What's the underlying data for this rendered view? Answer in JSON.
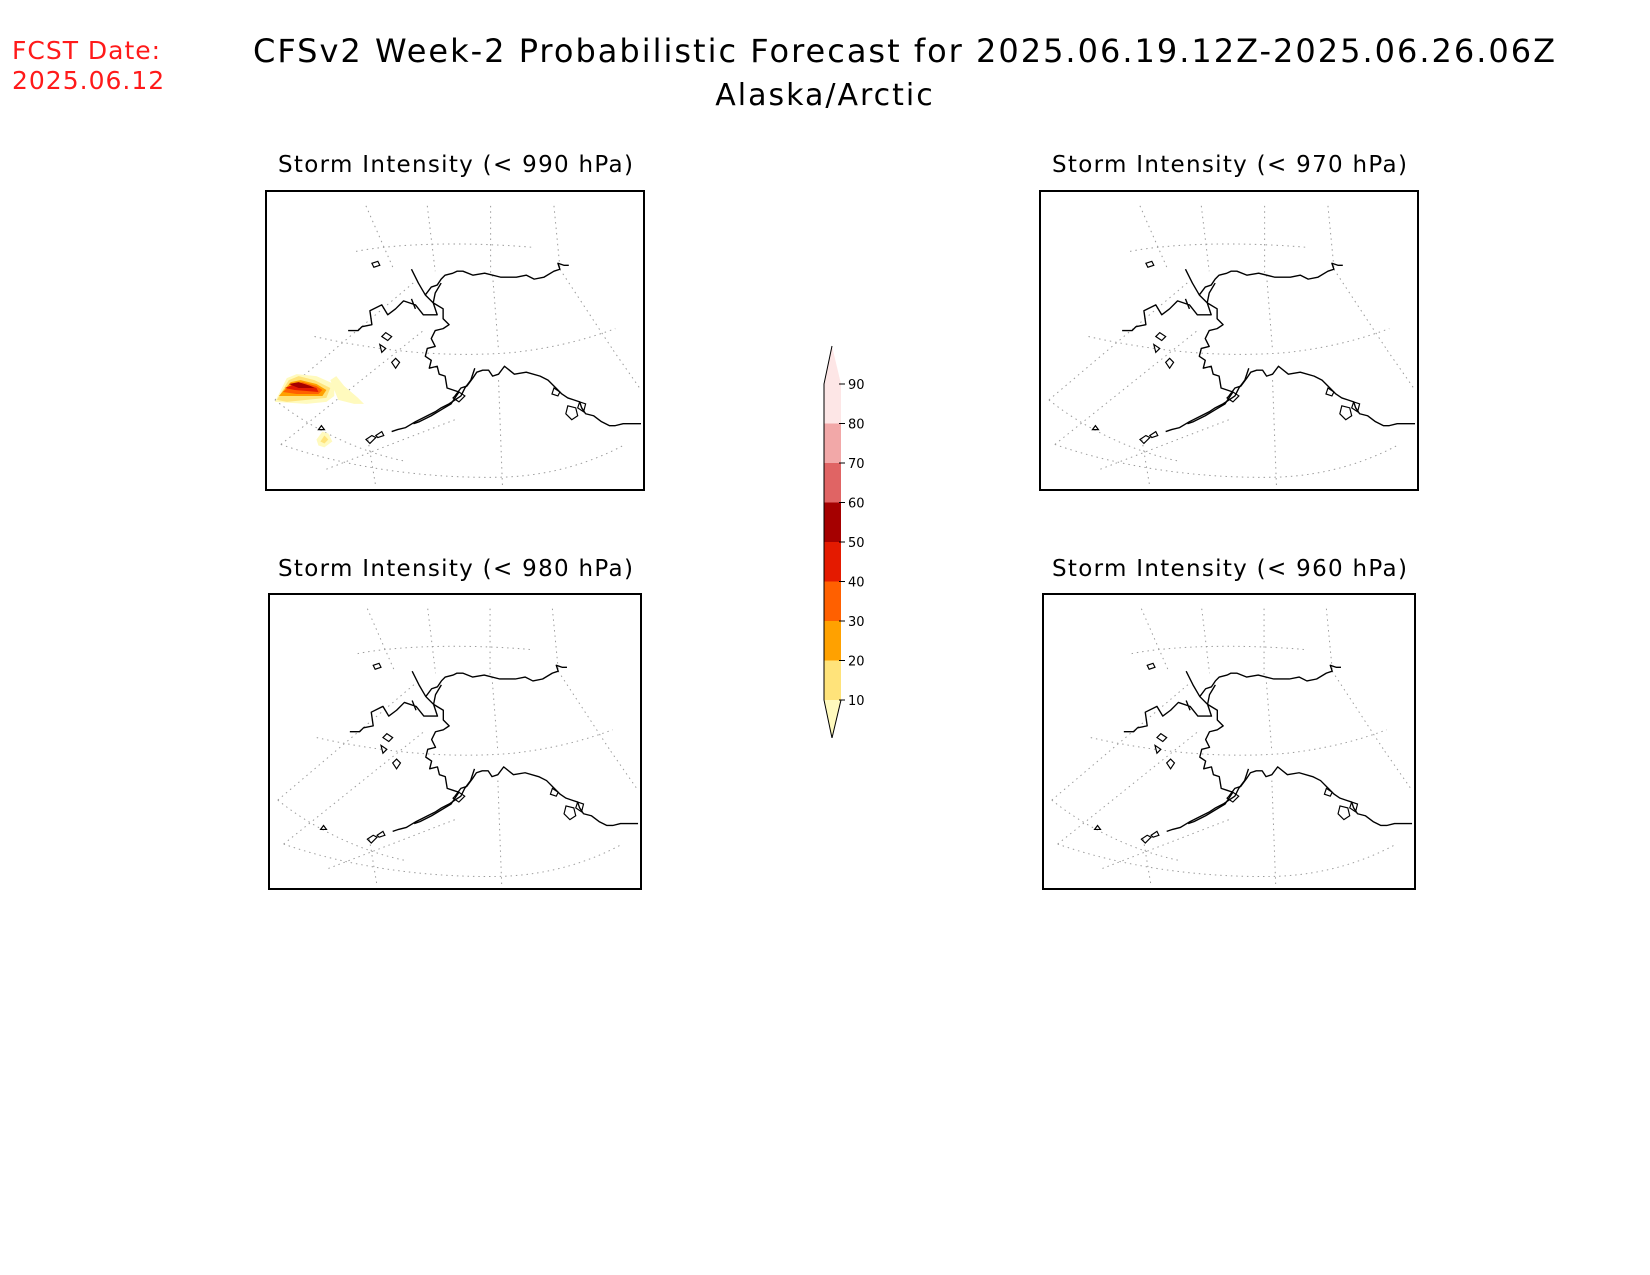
{
  "header": {
    "fcst_label": "FCST Date:",
    "fcst_date": "2025.06.12",
    "title": "CFSv2 Week-2 Probabilistic Forecast for 2025.06.19.12Z-2025.06.26.06Z",
    "region": "Alaska/Arctic"
  },
  "panels": [
    {
      "title": "Storm Intensity (< 990 hPa)",
      "max_probability_pct": 60
    },
    {
      "title": "Storm Intensity (< 970 hPa)",
      "max_probability_pct": 0
    },
    {
      "title": "Storm Intensity (< 980 hPa)",
      "max_probability_pct": 0
    },
    {
      "title": "Storm Intensity (< 960 hPa)",
      "max_probability_pct": 0
    }
  ],
  "colorbar": {
    "levels": [
      10,
      20,
      30,
      40,
      50,
      60,
      70,
      80,
      90
    ],
    "colors": [
      "#fffabe",
      "#ffe37a",
      "#ffa100",
      "#ff6000",
      "#e41a00",
      "#a50000",
      "#e06464",
      "#f2a8a8",
      "#fde6e6"
    ]
  }
}
